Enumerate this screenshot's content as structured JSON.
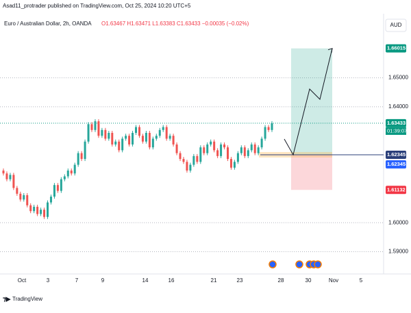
{
  "header": {
    "publisher": "Asad11_protrader published on TradingView.com, Oct 25, 2024 10:20 UTC+5"
  },
  "chart_data": {
    "type": "candlestick",
    "title": "Euro / Australian Dollar, 2h, OANDA",
    "legend": "O1.63467 H1.63471 L1.63383 C1.63433 −0.00035 (−0.02%)",
    "currency": "AUD",
    "up_color": "#26a69a",
    "down_color": "#ef5350",
    "open": 1.618,
    "closes": [
      1.617,
      1.615,
      1.6165,
      1.612,
      1.61,
      1.608,
      1.6095,
      1.606,
      1.604,
      1.6055,
      1.603,
      1.6045,
      1.602,
      1.607,
      1.609,
      1.613,
      1.611,
      1.615,
      1.616,
      1.618,
      1.617,
      1.62,
      1.624,
      1.622,
      1.628,
      1.634,
      1.632,
      1.635,
      1.63,
      1.632,
      1.629,
      1.631,
      1.627,
      1.628,
      1.625,
      1.629,
      1.63,
      1.627,
      1.631,
      1.633,
      1.63,
      1.628,
      1.631,
      1.626,
      1.629,
      1.63,
      1.632,
      1.633,
      1.629,
      1.63,
      1.627,
      1.624,
      1.622,
      1.621,
      1.618,
      1.62,
      1.623,
      1.621,
      1.626,
      1.624,
      1.627,
      1.628,
      1.625,
      1.623,
      1.627,
      1.626,
      1.622,
      1.619,
      1.621,
      1.624,
      1.626,
      1.623,
      1.625,
      1.627,
      1.624,
      1.626,
      1.629,
      1.633,
      1.632,
      1.63433
    ],
    "ylim": [
      1.5835,
      1.6674
    ],
    "yticks": [
      {
        "value": 1.59,
        "label": "1.59000"
      },
      {
        "value": 1.6,
        "label": "1.60000"
      },
      {
        "value": 1.64,
        "label": "1.64000"
      },
      {
        "value": 1.65,
        "label": "1.65000"
      }
    ],
    "xticks": [
      "Oct",
      "3",
      "7",
      "9",
      "14",
      "16",
      "21",
      "23",
      "28",
      "30",
      "Nov",
      "5"
    ],
    "price_tags": [
      {
        "value": 1.66015,
        "label": "1.66015",
        "color": "#089981"
      },
      {
        "value": 1.63433,
        "label": "1.63433",
        "color": "#089981"
      },
      {
        "value": 1.62345,
        "label": "1.62345",
        "color": "#2a3f7a"
      },
      {
        "value": 1.61132,
        "label": "1.61132",
        "color": "#f23645"
      }
    ],
    "countdown": "01:39:07"
  },
  "footer": {
    "brand": "TradingView"
  }
}
